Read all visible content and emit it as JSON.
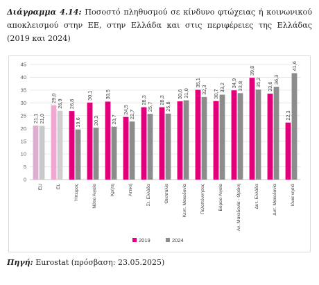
{
  "caption": {
    "label": "Διάγραμμα 4.14:",
    "text": "Ποσοστό πληθυσμού σε κίνδυνο φτώχειας ή κοινωνικού αποκλεισμού στην ΕΕ, στην Ελλάδα και στις περιφέρειες της Ελλάδας (2019 και 2024)"
  },
  "source": {
    "label": "Πηγή:",
    "text": "Eurostat (πρόσβαση: 23.05.2025)"
  },
  "colors": {
    "s2019": "#e0007a",
    "s2024": "#8c8c8c",
    "eu2019": "#dcaed0",
    "eu2024": "#c9c9c9",
    "gr2019": "#f0a8d2",
    "gr2024": "#cfcfcf"
  },
  "chart_data": {
    "type": "bar",
    "title": "",
    "xlabel": "",
    "ylabel": "",
    "ylim": [
      0,
      45
    ],
    "yticks": [
      0,
      5,
      10,
      15,
      20,
      25,
      30,
      35,
      40,
      45
    ],
    "grid": true,
    "legend_position": "bottom-center",
    "categories": [
      "EU",
      "EL",
      "Ήπειρος",
      "Νότιο Αιγαίο",
      "Κρήτη",
      "Αττική",
      "Στ. Ελλάδα",
      "Θεσσαλία",
      "Κεντ. Μακεδονία",
      "Πελοπόννησος",
      "Βόρειο Αιγαίο",
      "Αν. Μακεδονία - Θράκη",
      "Δυτ. Ελλάδα",
      "Δυτ. Μακεδονία",
      "Ιόνια νησιά"
    ],
    "series": [
      {
        "name": "2019",
        "values": [
          21.1,
          29.0,
          26.8,
          30.1,
          30.5,
          24.5,
          28.3,
          28.3,
          30.6,
          35.1,
          30.7,
          34.9,
          39.8,
          33.6,
          22.3
        ]
      },
      {
        "name": "2024",
        "values": [
          21.0,
          26.9,
          19.6,
          20.3,
          20.7,
          22.7,
          25.7,
          25.8,
          31.0,
          32.3,
          33.2,
          33.8,
          35.2,
          36.3,
          41.6
        ]
      }
    ],
    "data_labels": [
      [
        "21,1",
        "29,0",
        "26,8",
        "30,1",
        "30,5",
        "24,5",
        "28,3",
        "28,3",
        "30,6",
        "35,1",
        "30,7",
        "34,9",
        "39,8",
        "33,6",
        "22,3"
      ],
      [
        "21,0",
        "26,9",
        "19,6",
        "20,3",
        "20,7",
        "22,7",
        "25,7",
        "25,8",
        "31,0",
        "32,3",
        "33,2",
        "33,8",
        "35,2",
        "36,3",
        "41,6"
      ]
    ]
  }
}
